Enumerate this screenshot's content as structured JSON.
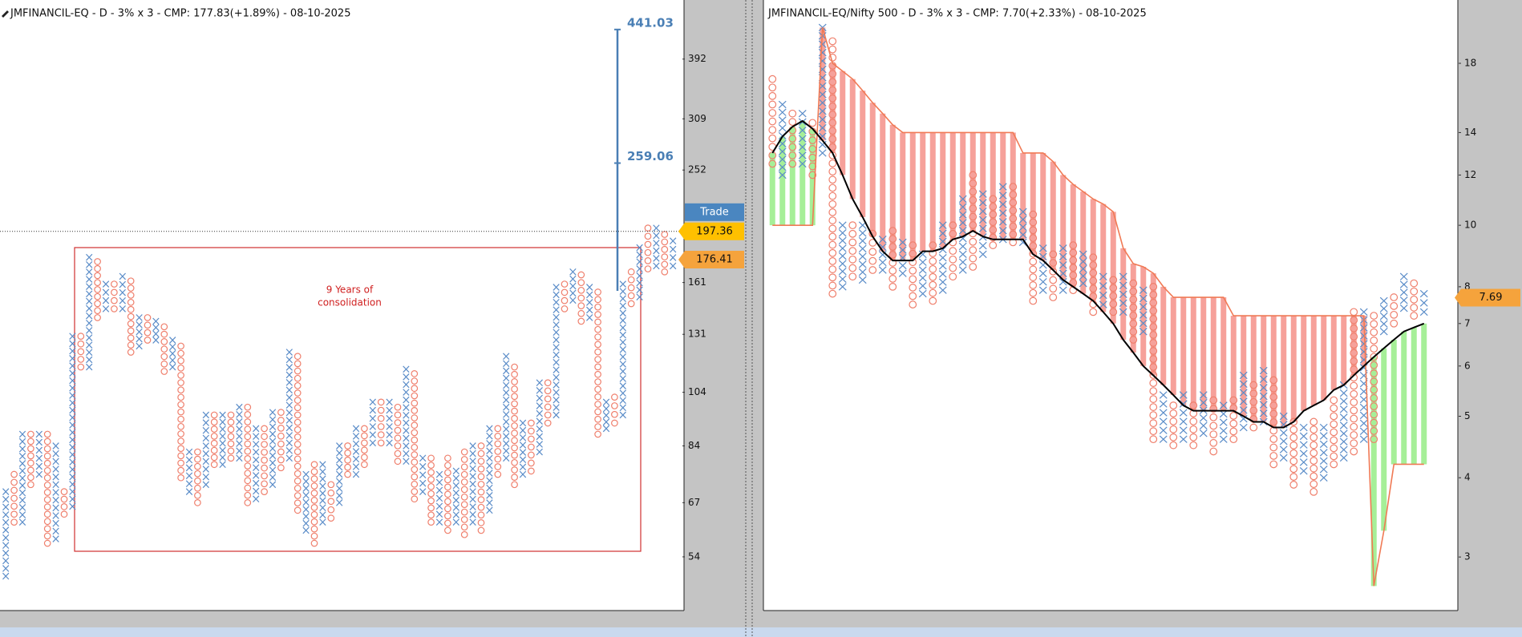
{
  "chart_data": [
    {
      "type": "pnf",
      "title": "JMFINANCIL-EQ - D - 3% x 3 - CMP: 177.83(+1.89%) - 08-10-2025",
      "x_color": "#5a8cc8",
      "o_color": "#ef7f6c",
      "yscale": "log",
      "ylim": [
        43.6,
        496
      ],
      "yticks": [
        54,
        67,
        84,
        104,
        131,
        161,
        252,
        309,
        392
      ],
      "columns": [
        [
          "x",
          50,
          70
        ],
        [
          "o",
          62,
          75
        ],
        [
          "x",
          62,
          88
        ],
        [
          "o",
          72,
          88
        ],
        [
          "x",
          75,
          88
        ],
        [
          "o",
          57,
          88
        ],
        [
          "x",
          58,
          84
        ],
        [
          "o",
          64,
          70
        ],
        [
          "x",
          66,
          130
        ],
        [
          "o",
          115,
          130
        ],
        [
          "x",
          115,
          178
        ],
        [
          "o",
          140,
          175
        ],
        [
          "x",
          145,
          160
        ],
        [
          "o",
          145,
          160
        ],
        [
          "x",
          145,
          165
        ],
        [
          "o",
          122,
          162
        ],
        [
          "x",
          125,
          140
        ],
        [
          "o",
          128,
          140
        ],
        [
          "x",
          128,
          138
        ],
        [
          "o",
          113,
          135
        ],
        [
          "x",
          115,
          128
        ],
        [
          "o",
          74,
          125
        ],
        [
          "x",
          70,
          82
        ],
        [
          "o",
          67,
          82
        ],
        [
          "x",
          72,
          95
        ],
        [
          "o",
          78,
          95
        ],
        [
          "x",
          78,
          95
        ],
        [
          "o",
          80,
          95
        ],
        [
          "x",
          80,
          98
        ],
        [
          "o",
          67,
          98
        ],
        [
          "x",
          68,
          90
        ],
        [
          "o",
          70,
          90
        ],
        [
          "x",
          72,
          96
        ],
        [
          "o",
          77,
          96
        ],
        [
          "x",
          80,
          122
        ],
        [
          "o",
          65,
          120
        ],
        [
          "x",
          60,
          75
        ],
        [
          "o",
          57,
          78
        ],
        [
          "x",
          62,
          78
        ],
        [
          "o",
          63,
          72
        ],
        [
          "x",
          67,
          84
        ],
        [
          "o",
          75,
          84
        ],
        [
          "x",
          75,
          90
        ],
        [
          "o",
          78,
          90
        ],
        [
          "x",
          85,
          100
        ],
        [
          "o",
          85,
          100
        ],
        [
          "x",
          85,
          100
        ],
        [
          "o",
          79,
          98
        ],
        [
          "x",
          79,
          114
        ],
        [
          "o",
          68,
          112
        ],
        [
          "x",
          70,
          80
        ],
        [
          "o",
          62,
          80
        ],
        [
          "x",
          62,
          75
        ],
        [
          "o",
          60,
          80
        ],
        [
          "x",
          62,
          76
        ],
        [
          "o",
          59,
          82
        ],
        [
          "x",
          62,
          84
        ],
        [
          "o",
          60,
          84
        ],
        [
          "x",
          65,
          90
        ],
        [
          "o",
          75,
          90
        ],
        [
          "x",
          80,
          120
        ],
        [
          "o",
          72,
          115
        ],
        [
          "x",
          75,
          92
        ],
        [
          "o",
          76,
          92
        ],
        [
          "x",
          82,
          108
        ],
        [
          "o",
          92,
          108
        ],
        [
          "x",
          95,
          158
        ],
        [
          "o",
          145,
          160
        ],
        [
          "x",
          150,
          168
        ],
        [
          "o",
          138,
          166
        ],
        [
          "x",
          140,
          158
        ],
        [
          "o",
          88,
          155
        ],
        [
          "x",
          90,
          100
        ],
        [
          "o",
          92,
          102
        ],
        [
          "x",
          95,
          160
        ],
        [
          "o",
          148,
          168
        ],
        [
          "x",
          152,
          185
        ],
        [
          "o",
          170,
          200
        ],
        [
          "x",
          172,
          200
        ],
        [
          "o",
          168,
          195
        ],
        [
          "x",
          172,
          190
        ]
      ],
      "target": {
        "values": [
          441.03,
          259.06
        ],
        "color": "#4a7fb5"
      },
      "annotation": [
        "9 Years of",
        "consolidation"
      ],
      "trade_label": "Trade",
      "price_levels": [
        {
          "value": 197.36,
          "color": "#ffc000"
        },
        {
          "value": 176.41,
          "color": "#f5a33c"
        }
      ]
    },
    {
      "type": "pnf",
      "title": "JMFINANCIL-EQ/Nifty 500 - D - 3% x 3 - CMP: 7.70(+2.33%) - 08-10-2025",
      "x_color": "#5a8cc8",
      "o_color": "#ef7f6c",
      "yscale": "log",
      "ylim": [
        2.47,
        22.65
      ],
      "yticks": [
        3,
        4,
        5,
        6,
        7,
        8,
        10,
        12,
        14,
        18
      ],
      "columns": [
        [
          "o",
          12.5,
          17
        ],
        [
          "x",
          12,
          15.5
        ],
        [
          "o",
          12.5,
          15
        ],
        [
          "x",
          12.5,
          15
        ],
        [
          "o",
          12,
          14.5
        ],
        [
          "x",
          13,
          20.5
        ],
        [
          "o",
          7.8,
          19.5
        ],
        [
          "x",
          8,
          10
        ],
        [
          "o",
          8.3,
          10
        ],
        [
          "x",
          8.2,
          10
        ],
        [
          "o",
          8.5,
          9.7
        ],
        [
          "x",
          8.5,
          9.5
        ],
        [
          "o",
          8,
          9.8
        ],
        [
          "x",
          8.4,
          9.4
        ],
        [
          "o",
          7.5,
          9.3
        ],
        [
          "x",
          7.8,
          9
        ],
        [
          "o",
          7.6,
          9.3
        ],
        [
          "x",
          7.9,
          10
        ],
        [
          "o",
          8.3,
          10
        ],
        [
          "x",
          8.5,
          11
        ],
        [
          "o",
          8.6,
          12
        ],
        [
          "x",
          9,
          11.2
        ],
        [
          "o",
          9.3,
          11
        ],
        [
          "x",
          9.5,
          11.5
        ],
        [
          "o",
          9.4,
          11.5
        ],
        [
          "x",
          9.4,
          10.5
        ],
        [
          "o",
          7.6,
          10.4
        ],
        [
          "x",
          7.9,
          9.2
        ],
        [
          "o",
          7.7,
          9
        ],
        [
          "x",
          7.9,
          9.2
        ],
        [
          "o",
          7.9,
          9.3
        ],
        [
          "x",
          8.1,
          9
        ],
        [
          "o",
          7.3,
          8.9
        ],
        [
          "x",
          7.5,
          8.3
        ],
        [
          "o",
          7.3,
          8.2
        ],
        [
          "x",
          7.3,
          8.3
        ],
        [
          "o",
          6.6,
          8.1
        ],
        [
          "x",
          6.8,
          7.9
        ],
        [
          "o",
          4.6,
          8
        ],
        [
          "x",
          4.6,
          5.4
        ],
        [
          "o",
          4.5,
          5.2
        ],
        [
          "x",
          4.6,
          5.4
        ],
        [
          "o",
          4.5,
          5.2
        ],
        [
          "x",
          4.7,
          5.4
        ],
        [
          "o",
          4.4,
          5.3
        ],
        [
          "x",
          4.6,
          5.2
        ],
        [
          "o",
          4.6,
          5.3
        ],
        [
          "x",
          4.8,
          5.8
        ],
        [
          "o",
          4.8,
          5.6
        ],
        [
          "x",
          4.9,
          5.9
        ],
        [
          "o",
          4.2,
          5.7
        ],
        [
          "x",
          4.3,
          5
        ],
        [
          "o",
          3.9,
          4.9
        ],
        [
          "x",
          4.1,
          4.8
        ],
        [
          "o",
          3.8,
          4.9
        ],
        [
          "x",
          4,
          4.8
        ],
        [
          "o",
          4.2,
          5.3
        ],
        [
          "x",
          4.3,
          5.6
        ],
        [
          "o",
          4.4,
          7.3
        ],
        [
          "x",
          4.6,
          7.3
        ],
        [
          "o",
          4.6,
          7.2
        ],
        [
          "x",
          6.8,
          7.6
        ],
        [
          "o",
          7,
          7.7
        ],
        [
          "x",
          7.4,
          8.3
        ],
        [
          "o",
          7.2,
          8.1
        ],
        [
          "x",
          7.3,
          7.8
        ]
      ],
      "lines": [
        {
          "color": "#000000",
          "values": [
            13,
            13.8,
            14.3,
            14.6,
            14.2,
            13.6,
            13,
            12,
            11,
            10.3,
            9.6,
            9.1,
            8.8,
            8.8,
            8.8,
            9.1,
            9.1,
            9.2,
            9.5,
            9.6,
            9.8,
            9.6,
            9.5,
            9.5,
            9.5,
            9.5,
            9.0,
            8.8,
            8.5,
            8.2,
            8.0,
            7.8,
            7.6,
            7.3,
            7.0,
            6.6,
            6.3,
            6.0,
            5.8,
            5.6,
            5.4,
            5.2,
            5.1,
            5.1,
            5.1,
            5.1,
            5.1,
            5.0,
            4.9,
            4.9,
            4.8,
            4.8,
            4.9,
            5.1,
            5.2,
            5.3,
            5.5,
            5.6,
            5.8,
            6.0,
            6.2,
            6.4,
            6.6,
            6.8,
            6.9,
            7.0
          ]
        },
        {
          "color": "#f07a55",
          "values": [
            10,
            10,
            10,
            10,
            10,
            20.5,
            18,
            17.5,
            17,
            16.3,
            15.6,
            15,
            14.4,
            14,
            14,
            14,
            14,
            14,
            14,
            14,
            14,
            14,
            14,
            14,
            14,
            13,
            13,
            13,
            12.6,
            12,
            11.6,
            11.3,
            11,
            10.8,
            10.5,
            9.2,
            8.7,
            8.6,
            8.4,
            8.0,
            7.7,
            7.7,
            7.7,
            7.7,
            7.7,
            7.7,
            7.2,
            7.2,
            7.2,
            7.2,
            7.2,
            7.2,
            7.2,
            7.2,
            7.2,
            7.2,
            7.2,
            7.2,
            7.2,
            7.2,
            2.7,
            3.3,
            4.2,
            4.2,
            4.2,
            4.2
          ]
        }
      ],
      "cloud_colors": {
        "up": "#f6a19a",
        "down": "#a6ef98"
      },
      "price_levels": [
        {
          "value": 7.69,
          "color": "#f5a33c"
        }
      ]
    }
  ]
}
